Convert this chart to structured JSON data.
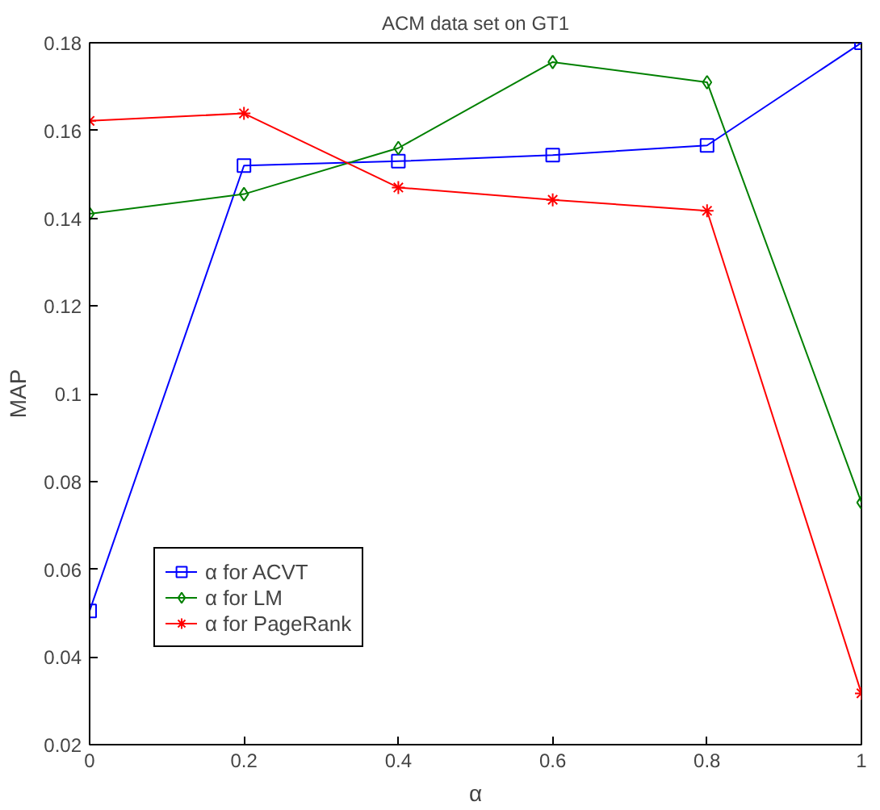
{
  "chart_data": {
    "type": "line",
    "title": "ACM data set on GT1",
    "xlabel": "α",
    "ylabel": "MAP",
    "x": [
      0,
      0.2,
      0.4,
      0.6,
      0.8,
      1
    ],
    "series": [
      {
        "name": "α for ACVT",
        "color": "#0000ff",
        "marker": "square",
        "values": [
          0.0505,
          0.152,
          0.153,
          0.1544,
          0.1566,
          0.18
        ]
      },
      {
        "name": "α for LM",
        "color": "#008000",
        "marker": "diamond",
        "values": [
          0.141,
          0.1455,
          0.156,
          0.1756,
          0.171,
          0.0752
        ]
      },
      {
        "name": "α for PageRank",
        "color": "#ff0000",
        "marker": "cross",
        "values": [
          0.1622,
          0.1639,
          0.147,
          0.1442,
          0.1417,
          0.0317
        ]
      }
    ],
    "xlim": [
      0,
      1
    ],
    "ylim": [
      0.02,
      0.18
    ],
    "xticks": [
      0,
      0.2,
      0.4,
      0.6,
      0.8,
      1
    ],
    "yticks": [
      0.02,
      0.04,
      0.06,
      0.08,
      0.1,
      0.12,
      0.14,
      0.16,
      0.18
    ],
    "grid": false,
    "legend": "bottom left",
    "line_style": "solid"
  }
}
